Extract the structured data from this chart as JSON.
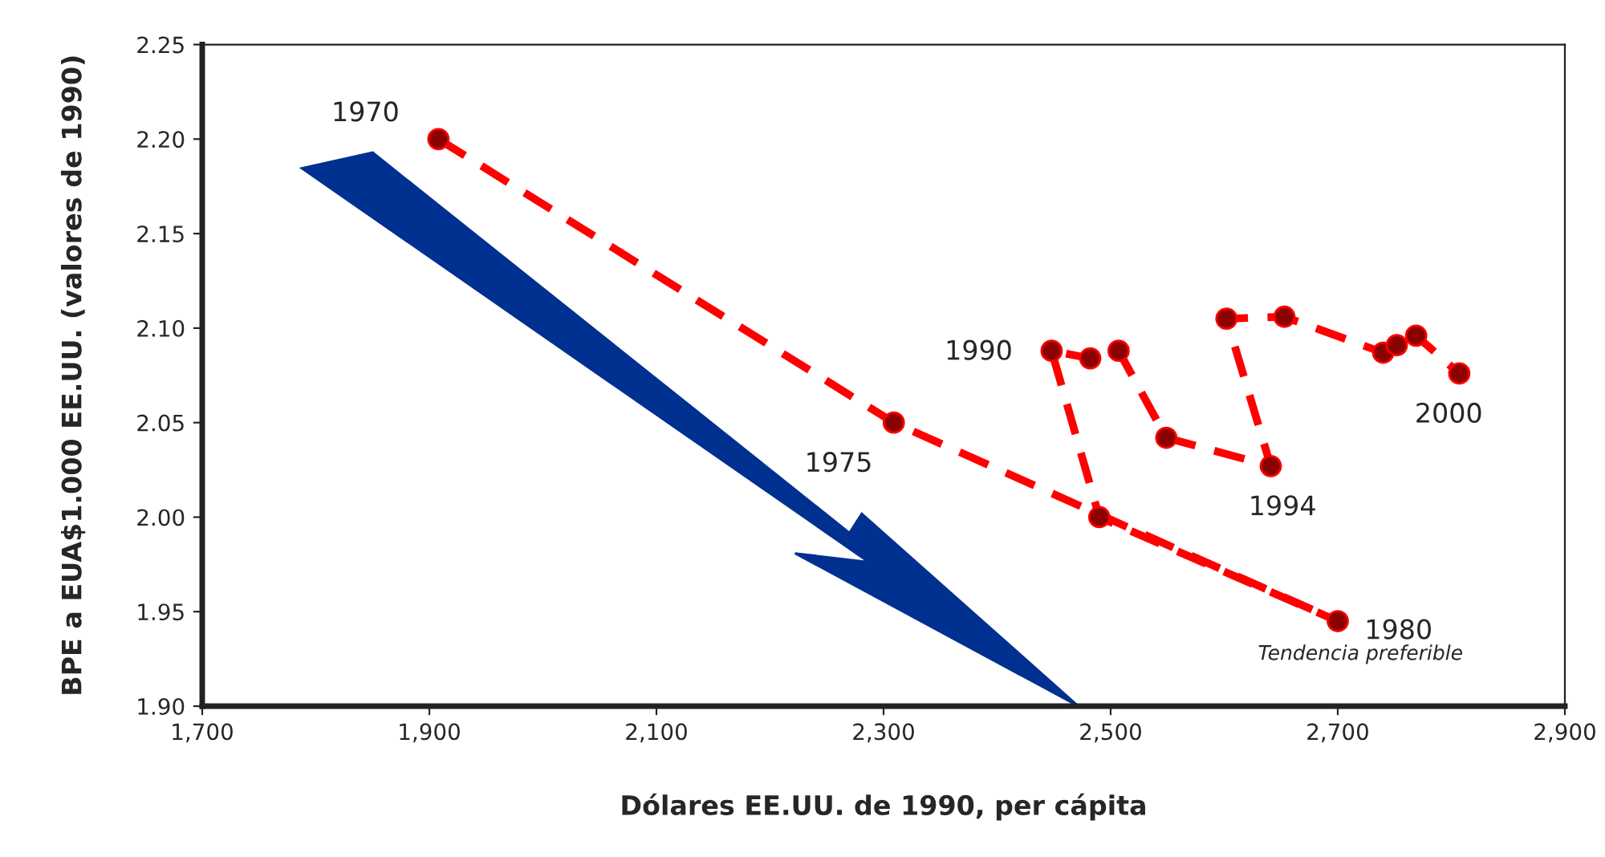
{
  "chart_data": {
    "type": "line",
    "xlabel": "Dólares EE.UU. de 1990, per cápita",
    "ylabel": "BPE a EUA$1.000 EE.UU. (valores de 1990)",
    "xlim": [
      1700,
      2900
    ],
    "ylim": [
      1.9,
      2.25
    ],
    "xticks": [
      {
        "value": 1700,
        "label": "1,700"
      },
      {
        "value": 1900,
        "label": "1,900"
      },
      {
        "value": 2100,
        "label": "2,100"
      },
      {
        "value": 2300,
        "label": "2,300"
      },
      {
        "value": 2500,
        "label": "2,500"
      },
      {
        "value": 2700,
        "label": "2,700"
      },
      {
        "value": 2900,
        "label": "2,900"
      }
    ],
    "yticks": [
      {
        "value": 1.9,
        "label": "1.90"
      },
      1.95,
      {
        "value": 2.0,
        "label": "2.00"
      },
      2.05,
      {
        "value": 2.1,
        "label": "2.10"
      },
      2.15,
      {
        "value": 2.2,
        "label": "2.20"
      },
      2.25
    ],
    "grid": false,
    "series": [
      {
        "color": "#ff0000",
        "line_style": "dashed",
        "marker": "circle",
        "x": [
          1908,
          2309,
          2700,
          2490,
          2448,
          2482,
          2507,
          2549,
          2641,
          2602,
          2653,
          2740,
          2752,
          2769,
          2807
        ],
        "values": [
          2.2,
          2.05,
          1.945,
          2.0,
          2.088,
          2.084,
          2.088,
          2.042,
          2.027,
          2.105,
          2.106,
          2.087,
          2.091,
          2.096,
          2.076
        ]
      }
    ],
    "annotations": [
      {
        "text": "1970",
        "x": 1908,
        "y": 2.2
      },
      {
        "text": "1975",
        "x": 2309,
        "y": 2.05
      },
      {
        "text": "1980",
        "x": 2700,
        "y": 1.945
      },
      {
        "text": "1990",
        "x": 2448,
        "y": 2.088
      },
      {
        "text": "1994",
        "x": 2641,
        "y": 2.027
      },
      {
        "text": "2000",
        "x": 2807,
        "y": 2.076
      },
      "Tendencia preferible"
    ]
  }
}
